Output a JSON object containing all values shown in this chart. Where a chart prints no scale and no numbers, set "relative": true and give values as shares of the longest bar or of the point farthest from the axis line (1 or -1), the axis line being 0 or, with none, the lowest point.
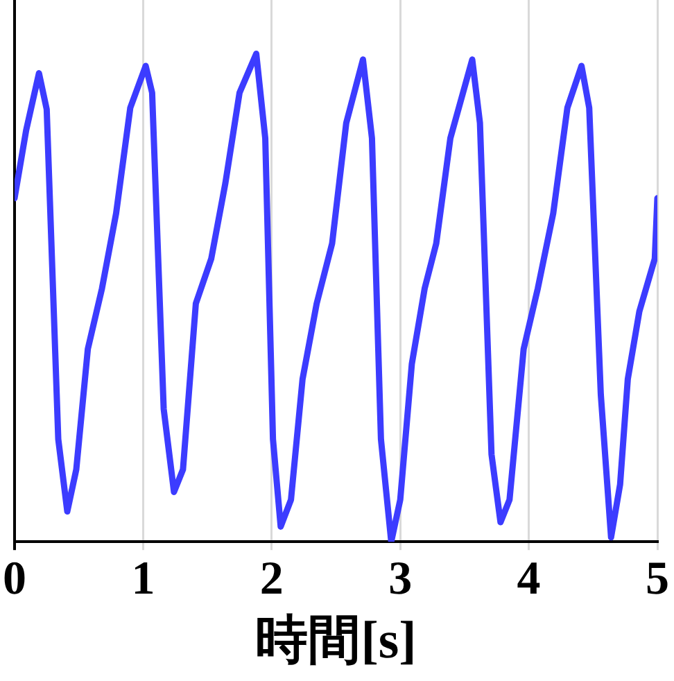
{
  "chart_data": {
    "type": "line",
    "xlabel": "時間[s]",
    "relative": true,
    "xlim": [
      0,
      5
    ],
    "xticks": [
      0,
      1,
      2,
      3,
      4,
      5
    ],
    "grid": "x",
    "legend": false,
    "marker": "none",
    "line_style": "solid",
    "series": [
      {
        "color": "#3c3cff",
        "x": [
          0,
          0.09,
          0.19,
          0.25,
          0.34,
          0.41,
          0.48,
          0.57,
          0.68,
          0.79,
          0.9,
          1.02,
          1.07,
          1.16,
          1.24,
          1.31,
          1.41,
          1.53,
          1.64,
          1.75,
          1.88,
          1.95,
          2.01,
          2.07,
          2.15,
          2.24,
          2.35,
          2.47,
          2.58,
          2.71,
          2.78,
          2.85,
          2.93,
          3.0,
          3.09,
          3.19,
          3.28,
          3.39,
          3.56,
          3.62,
          3.71,
          3.78,
          3.85,
          3.96,
          4.07,
          4.19,
          4.3,
          4.41,
          4.47,
          4.56,
          4.64,
          4.71,
          4.77,
          4.86,
          4.98,
          5.0
        ],
        "values": [
          0.704,
          0.843,
          0.96,
          0.886,
          0.21,
          0.062,
          0.148,
          0.395,
          0.519,
          0.673,
          0.889,
          0.975,
          0.92,
          0.272,
          0.102,
          0.148,
          0.488,
          0.58,
          0.735,
          0.92,
          1.0,
          0.827,
          0.21,
          0.031,
          0.086,
          0.333,
          0.488,
          0.611,
          0.858,
          0.988,
          0.827,
          0.21,
          0.0,
          0.086,
          0.364,
          0.519,
          0.611,
          0.827,
          0.988,
          0.858,
          0.179,
          0.04,
          0.086,
          0.395,
          0.519,
          0.673,
          0.889,
          0.975,
          0.889,
          0.302,
          0.009,
          0.117,
          0.333,
          0.472,
          0.58,
          0.704
        ]
      }
    ]
  }
}
